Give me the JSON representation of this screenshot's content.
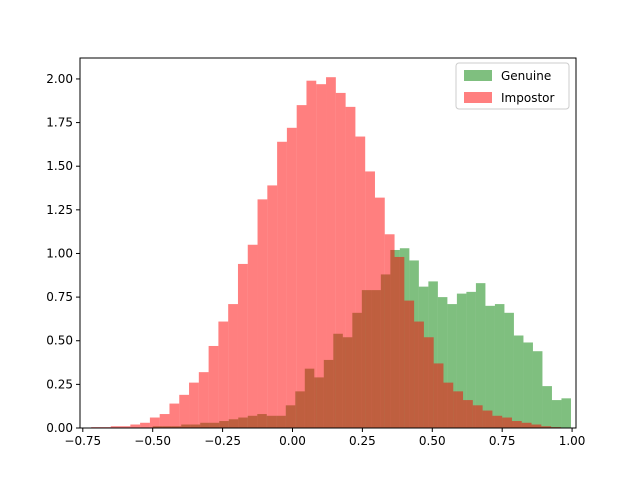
{
  "chart_data": {
    "type": "histogram",
    "title": "",
    "xlabel": "",
    "ylabel": "",
    "xlim": [
      -0.75,
      1.0
    ],
    "ylim": [
      0,
      2.0
    ],
    "xticks": [
      -0.75,
      -0.5,
      -0.25,
      0.0,
      0.25,
      0.5,
      0.75,
      1.0
    ],
    "xtick_labels": [
      "−0.75",
      "−0.50",
      "−0.25",
      "0.00",
      "0.25",
      "0.50",
      "0.75",
      "1.00"
    ],
    "yticks": [
      0.0,
      0.25,
      0.5,
      0.75,
      1.0,
      1.25,
      1.5,
      1.75,
      2.0
    ],
    "ytick_labels": [
      "0.00",
      "0.25",
      "0.50",
      "0.75",
      "1.00",
      "1.25",
      "1.50",
      "1.75",
      "2.00"
    ],
    "grid": false,
    "legend_position": "upper right",
    "alpha": 0.5,
    "series": [
      {
        "name": "Genuine",
        "color": "#008000",
        "bins": [
          [
            -0.5,
            -0.466,
            0.01
          ],
          [
            -0.466,
            -0.432,
            0.01
          ],
          [
            -0.432,
            -0.398,
            0.01
          ],
          [
            -0.398,
            -0.364,
            0.02
          ],
          [
            -0.364,
            -0.33,
            0.02
          ],
          [
            -0.33,
            -0.296,
            0.03
          ],
          [
            -0.296,
            -0.262,
            0.03
          ],
          [
            -0.262,
            -0.228,
            0.04
          ],
          [
            -0.228,
            -0.194,
            0.05
          ],
          [
            -0.194,
            -0.16,
            0.06
          ],
          [
            -0.16,
            -0.126,
            0.07
          ],
          [
            -0.126,
            -0.092,
            0.08
          ],
          [
            -0.092,
            -0.058,
            0.07
          ],
          [
            -0.058,
            -0.024,
            0.07
          ],
          [
            -0.024,
            0.01,
            0.13
          ],
          [
            0.01,
            0.044,
            0.21
          ],
          [
            0.044,
            0.078,
            0.34
          ],
          [
            0.078,
            0.112,
            0.29
          ],
          [
            0.112,
            0.146,
            0.39
          ],
          [
            0.146,
            0.18,
            0.54
          ],
          [
            0.18,
            0.214,
            0.52
          ],
          [
            0.214,
            0.248,
            0.66
          ],
          [
            0.248,
            0.282,
            0.79
          ],
          [
            0.282,
            0.316,
            0.79
          ],
          [
            0.316,
            0.35,
            0.88
          ],
          [
            0.35,
            0.384,
            1.02
          ],
          [
            0.384,
            0.418,
            1.03
          ],
          [
            0.418,
            0.452,
            0.96
          ],
          [
            0.452,
            0.486,
            0.81
          ],
          [
            0.486,
            0.52,
            0.84
          ],
          [
            0.52,
            0.554,
            0.75
          ],
          [
            0.554,
            0.588,
            0.71
          ],
          [
            0.588,
            0.622,
            0.77
          ],
          [
            0.622,
            0.656,
            0.78
          ],
          [
            0.656,
            0.69,
            0.83
          ],
          [
            0.69,
            0.724,
            0.7
          ],
          [
            0.724,
            0.758,
            0.71
          ],
          [
            0.758,
            0.792,
            0.66
          ],
          [
            0.792,
            0.826,
            0.53
          ],
          [
            0.826,
            0.86,
            0.49
          ],
          [
            0.86,
            0.894,
            0.44
          ],
          [
            0.894,
            0.928,
            0.24
          ],
          [
            0.928,
            0.962,
            0.16
          ],
          [
            0.962,
            0.996,
            0.17
          ]
        ]
      },
      {
        "name": "Impostor",
        "color": "#ff0000",
        "bins": [
          [
            -0.72,
            -0.685,
            0.005
          ],
          [
            -0.685,
            -0.65,
            0.005
          ],
          [
            -0.65,
            -0.615,
            0.01
          ],
          [
            -0.615,
            -0.58,
            0.01
          ],
          [
            -0.58,
            -0.545,
            0.02
          ],
          [
            -0.545,
            -0.51,
            0.03
          ],
          [
            -0.51,
            -0.475,
            0.06
          ],
          [
            -0.475,
            -0.44,
            0.08
          ],
          [
            -0.44,
            -0.405,
            0.14
          ],
          [
            -0.405,
            -0.37,
            0.19
          ],
          [
            -0.37,
            -0.335,
            0.26
          ],
          [
            -0.335,
            -0.3,
            0.32
          ],
          [
            -0.3,
            -0.265,
            0.47
          ],
          [
            -0.265,
            -0.23,
            0.61
          ],
          [
            -0.23,
            -0.195,
            0.71
          ],
          [
            -0.195,
            -0.16,
            0.94
          ],
          [
            -0.16,
            -0.125,
            1.05
          ],
          [
            -0.125,
            -0.09,
            1.31
          ],
          [
            -0.09,
            -0.055,
            1.39
          ],
          [
            -0.055,
            -0.02,
            1.64
          ],
          [
            -0.02,
            0.015,
            1.72
          ],
          [
            0.015,
            0.05,
            1.85
          ],
          [
            0.05,
            0.085,
            1.99
          ],
          [
            0.085,
            0.12,
            1.97
          ],
          [
            0.12,
            0.155,
            2.01
          ],
          [
            0.155,
            0.19,
            1.92
          ],
          [
            0.19,
            0.225,
            1.84
          ],
          [
            0.225,
            0.26,
            1.67
          ],
          [
            0.26,
            0.295,
            1.47
          ],
          [
            0.295,
            0.33,
            1.32
          ],
          [
            0.33,
            0.365,
            1.11
          ],
          [
            0.365,
            0.4,
            0.98
          ],
          [
            0.4,
            0.435,
            0.73
          ],
          [
            0.435,
            0.47,
            0.61
          ],
          [
            0.47,
            0.505,
            0.52
          ],
          [
            0.505,
            0.54,
            0.37
          ],
          [
            0.54,
            0.575,
            0.26
          ],
          [
            0.575,
            0.61,
            0.21
          ],
          [
            0.61,
            0.645,
            0.16
          ],
          [
            0.645,
            0.68,
            0.13
          ],
          [
            0.68,
            0.715,
            0.1
          ],
          [
            0.715,
            0.75,
            0.07
          ],
          [
            0.75,
            0.785,
            0.06
          ],
          [
            0.785,
            0.82,
            0.04
          ],
          [
            0.82,
            0.855,
            0.03
          ],
          [
            0.855,
            0.89,
            0.02
          ],
          [
            0.89,
            0.925,
            0.01
          ],
          [
            0.925,
            0.96,
            0.005
          ]
        ]
      }
    ]
  }
}
